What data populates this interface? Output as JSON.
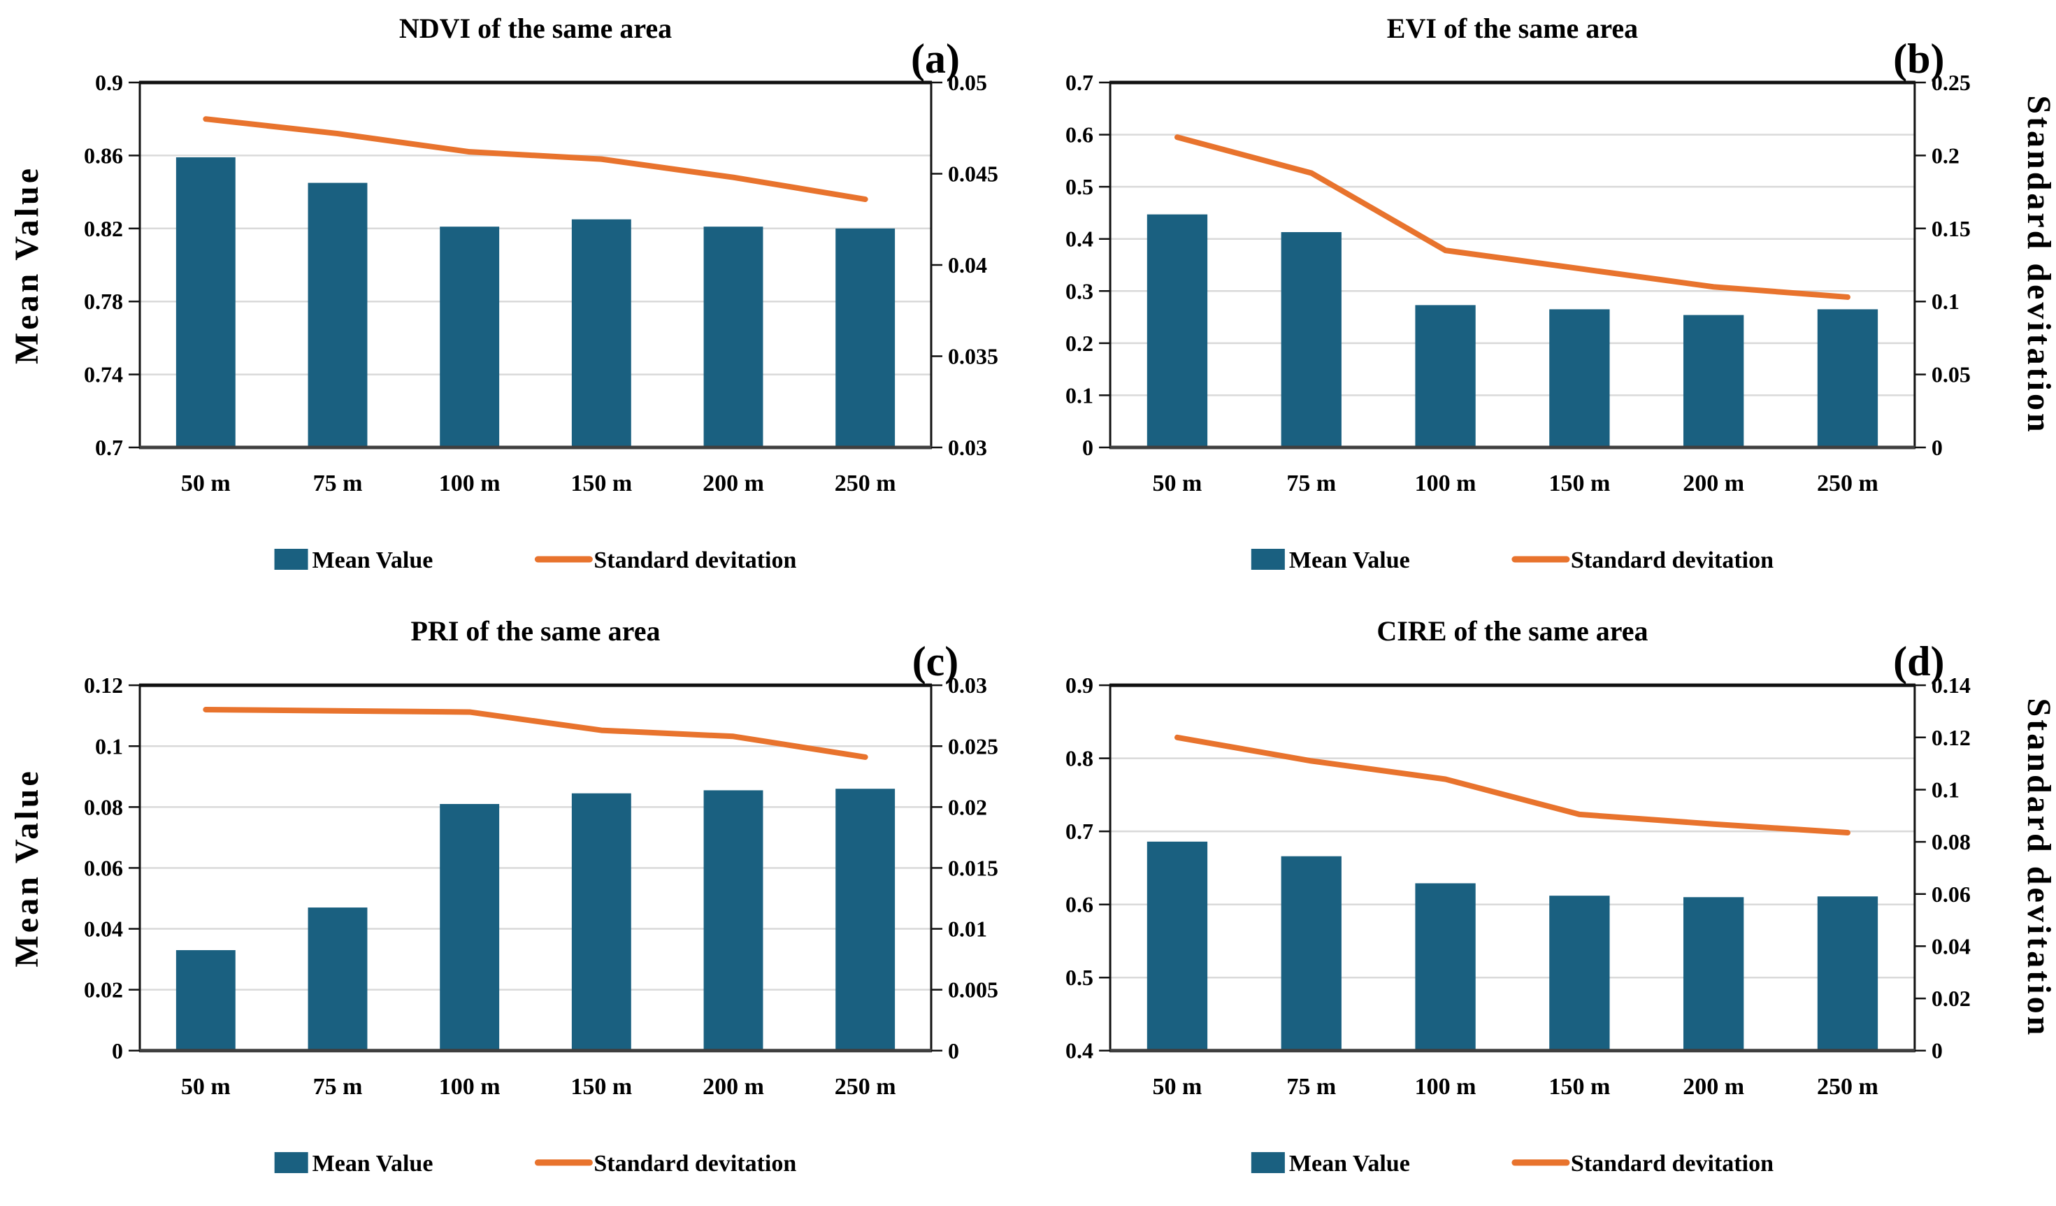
{
  "figure": {
    "background": "#ffffff",
    "colors": {
      "bar": "#1A6080",
      "line": "#E8732D",
      "grid": "#D9D9D9",
      "frame": "#111111",
      "x_axis": "#3F3F3F",
      "text": "#000000"
    },
    "legend": {
      "mean_label": "Mean Value",
      "std_label": "Standard devitation"
    }
  },
  "chart_data": [
    {
      "type": "bar",
      "panel_label": "(a)",
      "title": "NDVI of the same area",
      "categories": [
        "50 m",
        "75 m",
        "100 m",
        "150 m",
        "200 m",
        "250 m"
      ],
      "series": [
        {
          "name": "Mean Value",
          "kind": "bar",
          "axis": "left",
          "values": [
            0.859,
            0.845,
            0.821,
            0.825,
            0.821,
            0.82
          ]
        },
        {
          "name": "Standard devitation",
          "kind": "line",
          "axis": "right",
          "values": [
            0.048,
            0.0472,
            0.0462,
            0.0458,
            0.0448,
            0.0436
          ]
        }
      ],
      "left_axis": {
        "min": 0.7,
        "max": 0.9,
        "ticks": [
          "0.9",
          "0.86",
          "0.82",
          "0.78",
          "0.74",
          "0.7"
        ],
        "label": "Mean Value"
      },
      "right_axis": {
        "min": 0.03,
        "max": 0.05,
        "ticks": [
          "0.05",
          "0.045",
          "0.04",
          "0.035",
          "0.03"
        ],
        "label": ""
      },
      "grid": true,
      "legend_position": "bottom"
    },
    {
      "type": "bar",
      "panel_label": "(b)",
      "title": "EVI of the same area",
      "categories": [
        "50 m",
        "75 m",
        "100 m",
        "150 m",
        "200 m",
        "250 m"
      ],
      "series": [
        {
          "name": "Mean Value",
          "kind": "bar",
          "axis": "left",
          "values": [
            0.447,
            0.413,
            0.273,
            0.265,
            0.254,
            0.265
          ]
        },
        {
          "name": "Standard devitation",
          "kind": "line",
          "axis": "right",
          "values": [
            0.2125,
            0.188,
            0.135,
            0.1225,
            0.11,
            0.103
          ]
        }
      ],
      "left_axis": {
        "min": 0,
        "max": 0.7,
        "ticks": [
          "0.7",
          "0.6",
          "0.5",
          "0.4",
          "0.3",
          "0.2",
          "0.1",
          "0"
        ],
        "label": ""
      },
      "right_axis": {
        "min": 0,
        "max": 0.25,
        "ticks": [
          "0.25",
          "0.2",
          "0.15",
          "0.1",
          "0.05",
          "0"
        ],
        "label": "Standard devitation"
      },
      "grid": true,
      "legend_position": "bottom"
    },
    {
      "type": "bar",
      "panel_label": "(c)",
      "title": "PRI of the same area",
      "categories": [
        "50 m",
        "75 m",
        "100 m",
        "150 m",
        "200 m",
        "250 m"
      ],
      "series": [
        {
          "name": "Mean Value",
          "kind": "bar",
          "axis": "left",
          "values": [
            0.033,
            0.047,
            0.081,
            0.0845,
            0.0855,
            0.086
          ]
        },
        {
          "name": "Standard devitation",
          "kind": "line",
          "axis": "right",
          "values": [
            0.028,
            0.0279,
            0.0278,
            0.0263,
            0.0258,
            0.0241
          ]
        }
      ],
      "left_axis": {
        "min": 0,
        "max": 0.12,
        "ticks": [
          "0.12",
          "0.1",
          "0.08",
          "0.06",
          "0.04",
          "0.02",
          "0"
        ],
        "label": "Mean Value"
      },
      "right_axis": {
        "min": 0,
        "max": 0.03,
        "ticks": [
          "0.03",
          "0.025",
          "0.02",
          "0.015",
          "0.01",
          "0.005",
          "0"
        ],
        "label": ""
      },
      "grid": true,
      "legend_position": "bottom"
    },
    {
      "type": "bar",
      "panel_label": "(d)",
      "title": "CIRE of the same area",
      "categories": [
        "50 m",
        "75 m",
        "100 m",
        "150 m",
        "200 m",
        "250 m"
      ],
      "series": [
        {
          "name": "Mean Value",
          "kind": "bar",
          "axis": "left",
          "values": [
            0.686,
            0.666,
            0.629,
            0.612,
            0.61,
            0.611
          ]
        },
        {
          "name": "Standard devitation",
          "kind": "line",
          "axis": "right",
          "values": [
            0.12,
            0.111,
            0.104,
            0.0905,
            0.0868,
            0.0835
          ]
        }
      ],
      "left_axis": {
        "min": 0.4,
        "max": 0.9,
        "ticks": [
          "0.9",
          "0.8",
          "0.7",
          "0.6",
          "0.5",
          "0.4"
        ],
        "label": ""
      },
      "right_axis": {
        "min": 0,
        "max": 0.14,
        "ticks": [
          "0.14",
          "0.12",
          "0.1",
          "0.08",
          "0.06",
          "0.04",
          "0.02",
          "0"
        ],
        "label": "Standard devitation"
      },
      "grid": true,
      "legend_position": "bottom"
    }
  ]
}
